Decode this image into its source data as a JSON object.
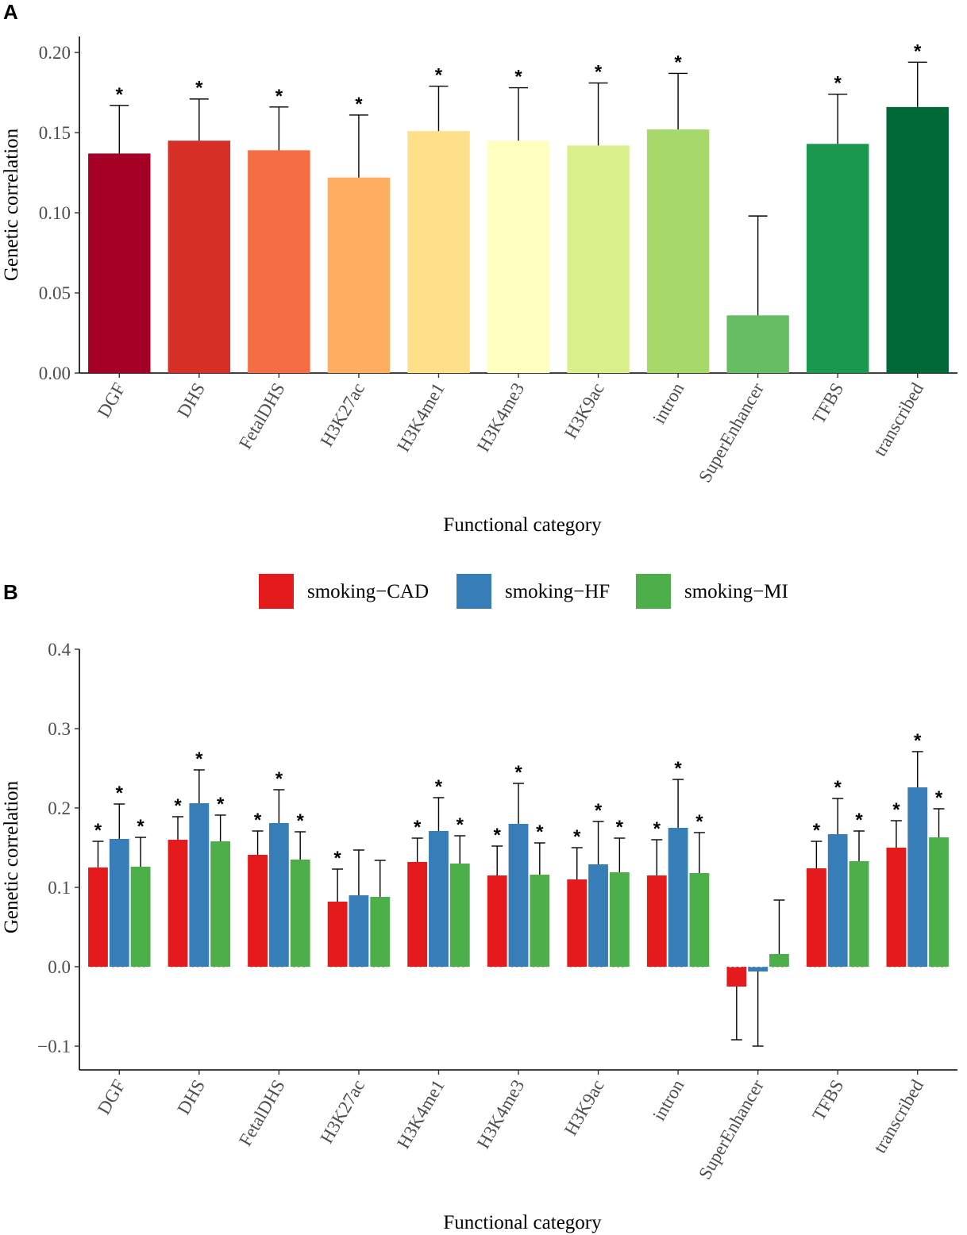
{
  "chart_data": [
    {
      "panel": "A",
      "type": "bar",
      "title": "",
      "xlabel": "Functional category",
      "ylabel": "Genetic correlation",
      "ylim": [
        0,
        0.21
      ],
      "yticks": [
        0.0,
        0.05,
        0.1,
        0.15,
        0.2
      ],
      "ytick_labels": [
        "0.00",
        "0.05",
        "0.10",
        "0.15",
        "0.20"
      ],
      "categories": [
        "DGF",
        "DHS",
        "FetalDHS",
        "H3K27ac",
        "H3K4me1",
        "H3K4me3",
        "H3K9ac",
        "intron",
        "SuperEnhancer",
        "TFBS",
        "transcribed"
      ],
      "values": [
        0.137,
        0.145,
        0.139,
        0.122,
        0.151,
        0.145,
        0.142,
        0.152,
        0.036,
        0.143,
        0.166
      ],
      "error_upper": [
        0.167,
        0.171,
        0.166,
        0.161,
        0.179,
        0.178,
        0.181,
        0.187,
        0.098,
        0.174,
        0.194
      ],
      "significant": [
        true,
        true,
        true,
        true,
        true,
        true,
        true,
        true,
        false,
        true,
        true
      ],
      "colors": [
        "#a50026",
        "#d73027",
        "#f46d43",
        "#fdae61",
        "#fee08b",
        "#ffffbf",
        "#d9ef8b",
        "#a6d96a",
        "#66bd63",
        "#1a9850",
        "#006837"
      ],
      "significance_mark": "*"
    },
    {
      "panel": "B",
      "type": "bar",
      "title": "",
      "xlabel": "Functional category",
      "ylabel": "Genetic correlation",
      "ylim": [
        -0.13,
        0.4
      ],
      "yticks": [
        -0.1,
        0.0,
        0.1,
        0.2,
        0.3,
        0.4
      ],
      "ytick_labels": [
        "−0.1",
        "0.0",
        "0.1",
        "0.2",
        "0.3",
        "0.4"
      ],
      "legend_position": "top",
      "categories": [
        "DGF",
        "DHS",
        "FetalDHS",
        "H3K27ac",
        "H3K4me1",
        "H3K4me3",
        "H3K9ac",
        "intron",
        "SuperEnhancer",
        "TFBS",
        "transcribed"
      ],
      "series": [
        {
          "name": "smoking−CAD",
          "color": "#e41a1c",
          "values": [
            0.125,
            0.16,
            0.141,
            0.082,
            0.132,
            0.115,
            0.11,
            0.115,
            -0.025,
            0.124,
            0.15
          ],
          "error_upper": [
            0.158,
            0.189,
            0.171,
            0.123,
            0.162,
            0.152,
            0.15,
            0.16,
            -0.092,
            0.158,
            0.184
          ],
          "significant": [
            true,
            true,
            true,
            true,
            true,
            true,
            true,
            true,
            false,
            true,
            true
          ]
        },
        {
          "name": "smoking−HF",
          "color": "#377eb8",
          "values": [
            0.161,
            0.206,
            0.181,
            0.09,
            0.171,
            0.18,
            0.129,
            0.175,
            -0.006,
            0.167,
            0.226
          ],
          "error_upper": [
            0.205,
            0.248,
            0.223,
            0.147,
            0.213,
            0.231,
            0.183,
            0.236,
            -0.1,
            0.212,
            0.271
          ],
          "significant": [
            true,
            true,
            true,
            false,
            true,
            true,
            true,
            true,
            false,
            true,
            true
          ]
        },
        {
          "name": "smoking−MI",
          "color": "#4daf4a",
          "values": [
            0.126,
            0.158,
            0.135,
            0.088,
            0.13,
            0.116,
            0.119,
            0.118,
            0.016,
            0.133,
            0.163
          ],
          "error_upper": [
            0.163,
            0.191,
            0.17,
            0.134,
            0.165,
            0.156,
            0.162,
            0.169,
            0.084,
            0.171,
            0.199
          ],
          "significant": [
            true,
            true,
            true,
            false,
            true,
            true,
            true,
            true,
            false,
            true,
            true
          ]
        }
      ],
      "significance_mark": "*"
    }
  ],
  "panel_labels": {
    "a": "A",
    "b": "B"
  }
}
